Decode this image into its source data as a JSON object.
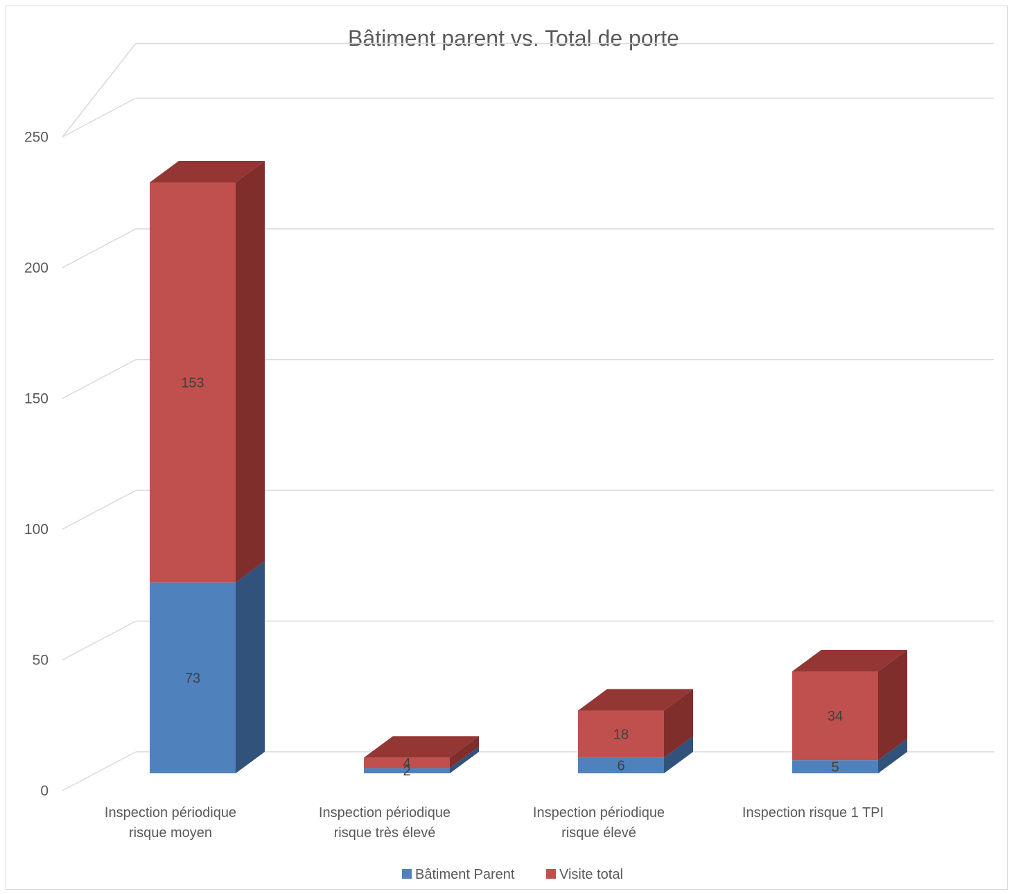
{
  "chart_data": {
    "type": "bar",
    "stacked": true,
    "style": "3d-column",
    "title": "Bâtiment parent vs. Total de porte",
    "categories": [
      [
        "Inspection périodique",
        "risque moyen"
      ],
      [
        "Inspection périodique",
        "risque très élevé"
      ],
      [
        "Inspection périodique",
        "risque élevé"
      ],
      [
        "Inspection risque 1 TPI"
      ]
    ],
    "series": [
      {
        "name": "Bâtiment Parent",
        "values": [
          73,
          2,
          6,
          5
        ],
        "color": "#4f81bd",
        "side_color": "#31527a"
      },
      {
        "name": "Visite total",
        "values": [
          153,
          4,
          18,
          34
        ],
        "color": "#c0504d",
        "side_color": "#7f2e2c",
        "top_color": "#943634"
      }
    ],
    "y_ticks": [
      "0",
      "50",
      "100",
      "150",
      "200",
      "250"
    ],
    "ylim": [
      0,
      250
    ],
    "grid": true,
    "legend_position": "bottom",
    "gridline_color": "#d9d9d9",
    "text_color": "#595959"
  }
}
